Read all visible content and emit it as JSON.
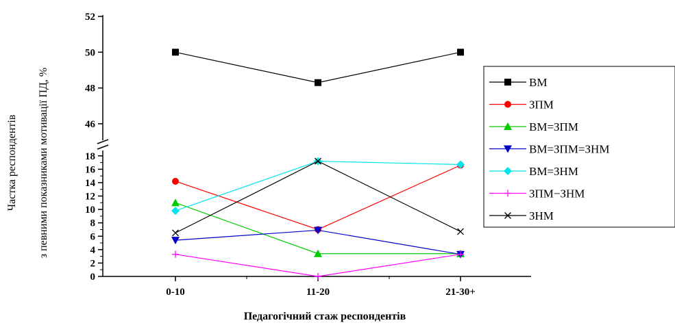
{
  "chart_data": {
    "type": "line",
    "title": "",
    "xlabel": "Педагогічний стаж респондентів",
    "ylabel_line1": "Частка респондентів",
    "ylabel_line2": "з певними показниками мотивації ПД, %",
    "categories": [
      "0-10",
      "11-20",
      "21-30+"
    ],
    "y_axis_break": true,
    "upper_ylim": [
      45,
      52
    ],
    "upper_yticks": [
      46,
      48,
      50,
      52
    ],
    "lower_ylim": [
      0,
      19
    ],
    "lower_yticks": [
      0,
      2,
      4,
      6,
      8,
      10,
      12,
      14,
      16,
      18
    ],
    "grid": false,
    "legend_position": "right",
    "series": [
      {
        "name": "ВМ",
        "values": [
          50,
          48.3,
          50
        ],
        "color": "#000000",
        "marker": "square"
      },
      {
        "name": "ЗПМ",
        "values": [
          14.2,
          7.0,
          16.6
        ],
        "color": "#ff0000",
        "marker": "circle"
      },
      {
        "name": "ВМ=ЗПМ",
        "values": [
          11.0,
          3.4,
          3.4
        ],
        "color": "#00cc00",
        "marker": "triangle-up"
      },
      {
        "name": "ВМ=ЗПМ=ЗНМ",
        "values": [
          5.4,
          6.9,
          3.3
        ],
        "color": "#0000cc",
        "marker": "triangle-down"
      },
      {
        "name": "ВМ=ЗНМ",
        "values": [
          9.8,
          17.2,
          16.7
        ],
        "color": "#00e5ee",
        "marker": "diamond"
      },
      {
        "name": "ЗПМ−ЗНМ",
        "values": [
          3.3,
          0,
          3.3
        ],
        "color": "#ff00ff",
        "marker": "plus"
      },
      {
        "name": "ЗНМ",
        "values": [
          6.5,
          17.2,
          6.7
        ],
        "color": "#000000",
        "marker": "x"
      }
    ]
  }
}
